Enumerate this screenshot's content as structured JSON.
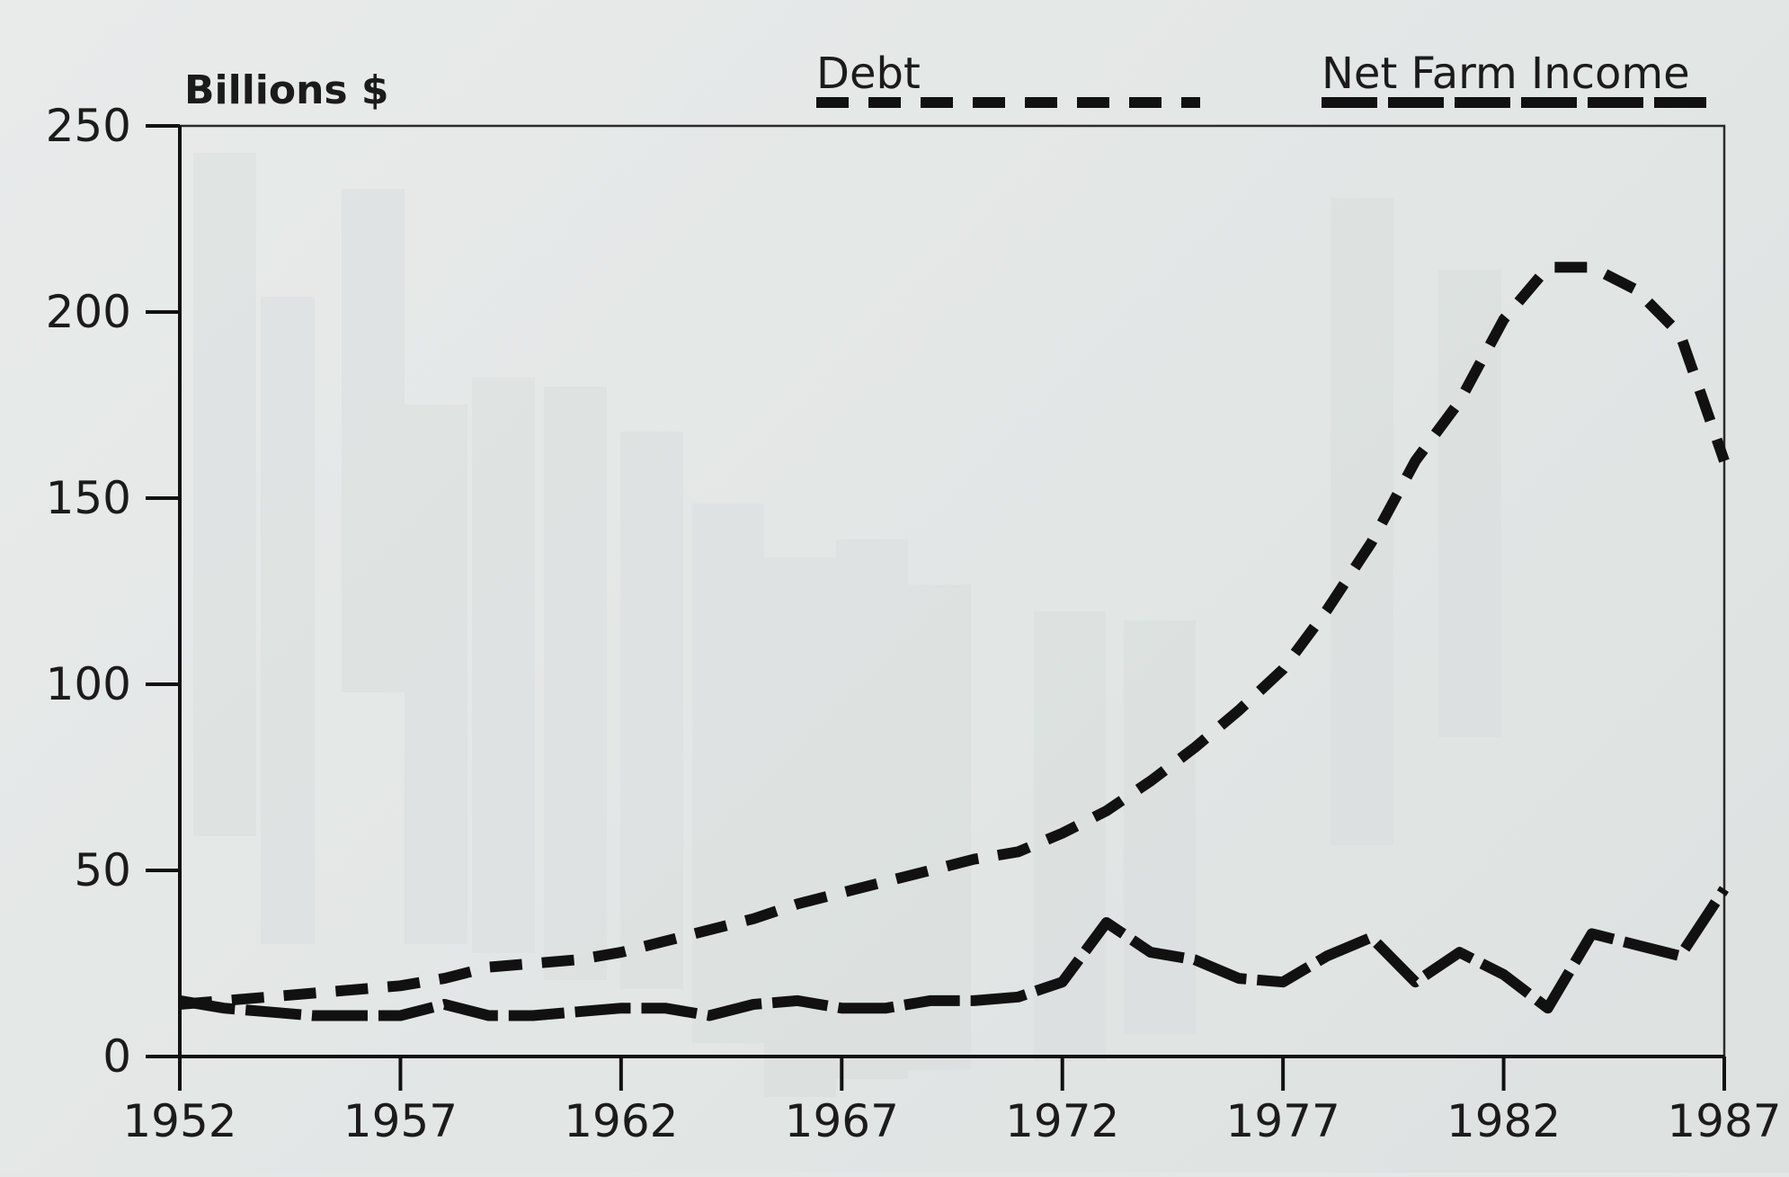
{
  "chart_data": {
    "type": "line",
    "title": "",
    "ylabel": "Billions $",
    "xlabel": "",
    "xlim": [
      1952,
      1987
    ],
    "ylim": [
      0,
      250
    ],
    "x_ticks": [
      "1952",
      "1957",
      "1962",
      "1967",
      "1972",
      "1977",
      "1982",
      "1987"
    ],
    "y_ticks": [
      "0",
      "50",
      "100",
      "150",
      "200",
      "250"
    ],
    "grid": false,
    "legend_position": "top",
    "series": [
      {
        "name": "Debt",
        "line_style": "dashed",
        "color": "#111111",
        "x": [
          1952,
          1953,
          1954,
          1955,
          1956,
          1957,
          1958,
          1959,
          1960,
          1961,
          1962,
          1963,
          1964,
          1965,
          1966,
          1967,
          1968,
          1969,
          1970,
          1971,
          1972,
          1973,
          1974,
          1975,
          1976,
          1977,
          1978,
          1979,
          1980,
          1981,
          1982,
          1983,
          1984,
          1985,
          1986,
          1987
        ],
        "values": [
          14,
          15,
          16,
          17,
          18,
          19,
          21,
          24,
          25,
          26,
          28,
          31,
          34,
          37,
          41,
          44,
          47,
          50,
          53,
          55,
          60,
          66,
          74,
          83,
          93,
          104,
          120,
          138,
          160,
          176,
          198,
          212,
          212,
          206,
          194,
          160
        ]
      },
      {
        "name": "Net Farm Income",
        "line_style": "long-dash",
        "color": "#111111",
        "x": [
          1952,
          1953,
          1954,
          1955,
          1956,
          1957,
          1958,
          1959,
          1960,
          1961,
          1962,
          1963,
          1964,
          1965,
          1966,
          1967,
          1968,
          1969,
          1970,
          1971,
          1972,
          1973,
          1974,
          1975,
          1976,
          1977,
          1978,
          1979,
          1980,
          1981,
          1982,
          1983,
          1984,
          1985,
          1986,
          1987
        ],
        "values": [
          15,
          13,
          12,
          11,
          11,
          11,
          14,
          11,
          11,
          12,
          13,
          13,
          11,
          14,
          15,
          13,
          13,
          15,
          15,
          16,
          20,
          36,
          28,
          26,
          21,
          20,
          27,
          32,
          20,
          28,
          22,
          13,
          33,
          30,
          27,
          45
        ]
      }
    ]
  },
  "legend": {
    "debt_label": "Debt",
    "income_label": "Net Farm Income"
  }
}
